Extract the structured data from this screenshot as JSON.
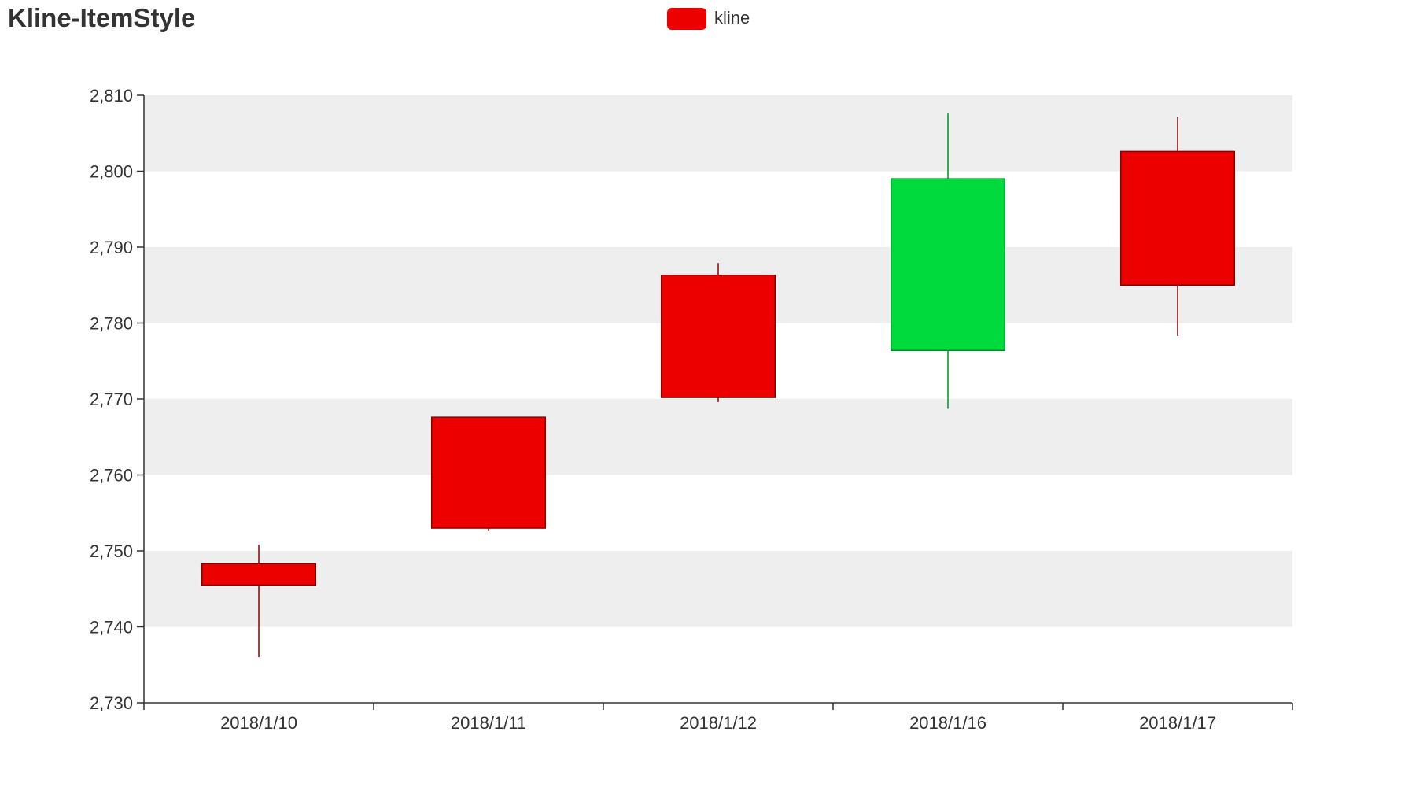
{
  "chart_data": {
    "type": "candlestick",
    "title": "Kline-ItemStyle",
    "legend": {
      "position": "top-center",
      "items": [
        {
          "name": "kline",
          "color": "#ec0000"
        }
      ]
    },
    "categories": [
      "2018/1/10",
      "2018/1/11",
      "2018/1/12",
      "2018/1/16",
      "2018/1/17"
    ],
    "series": [
      {
        "name": "kline",
        "data": [
          {
            "open": 2745.5,
            "close": 2748.3,
            "low": 2736.0,
            "high": 2750.8
          },
          {
            "open": 2753.0,
            "close": 2767.6,
            "low": 2752.6,
            "high": 2767.6
          },
          {
            "open": 2770.2,
            "close": 2786.3,
            "low": 2769.6,
            "high": 2787.9
          },
          {
            "open": 2799.0,
            "close": 2776.4,
            "low": 2768.7,
            "high": 2807.6
          },
          {
            "open": 2785.0,
            "close": 2802.6,
            "low": 2778.3,
            "high": 2807.1
          }
        ]
      }
    ],
    "yaxis": {
      "min": 2730,
      "max": 2810,
      "interval": 10
    },
    "split_area": true,
    "colors": {
      "up": "#ec0000",
      "up_border": "#8a0000",
      "down": "#00da3c",
      "down_border": "#008f28",
      "axis": "#333333",
      "split_area": [
        "#eeeeee",
        "#ffffff"
      ]
    }
  }
}
